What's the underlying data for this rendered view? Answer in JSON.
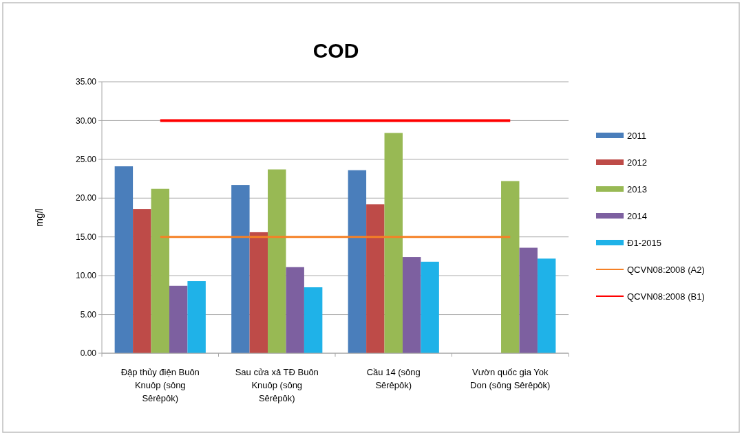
{
  "chart_data": {
    "type": "bar",
    "title": "COD",
    "ylabel": "mg/l",
    "categories": [
      "Đập thủy điện Buôn Knuôp (sông Sêrêpôk)",
      "Sau cửa xả TĐ Buôn Knuôp (sông Sêrêpôk)",
      "Cầu 14 (sông Sêrêpôk)",
      "Vườn quốc gia Yok Don (sông Sêrêpôk)"
    ],
    "series": [
      {
        "name": "2011",
        "color": "#4a7ebb",
        "values": [
          24.1,
          21.7,
          23.6,
          null
        ]
      },
      {
        "name": "2012",
        "color": "#be4b48",
        "values": [
          18.6,
          15.6,
          19.2,
          null
        ]
      },
      {
        "name": "2013",
        "color": "#98b954",
        "values": [
          21.2,
          23.7,
          28.4,
          22.2
        ]
      },
      {
        "name": "2014",
        "color": "#7d60a0",
        "values": [
          8.7,
          11.1,
          12.4,
          13.6
        ]
      },
      {
        "name": "Đ1-2015",
        "color": "#1fb2e8",
        "values": [
          9.3,
          8.5,
          11.8,
          12.2
        ]
      },
      {
        "name": "QCVN08:2008 (A2)",
        "type": "line",
        "color": "#f58025",
        "values": [
          15,
          15,
          15,
          15
        ]
      },
      {
        "name": "QCVN08:2008 (B1)",
        "type": "line",
        "color": "#ff0000",
        "values": [
          30,
          30,
          30,
          30
        ]
      }
    ],
    "ylim": [
      0,
      35
    ],
    "yticks": [
      {
        "value": 0,
        "label": "0.00"
      },
      {
        "value": 5,
        "label": "5.00"
      },
      {
        "value": 10,
        "label": "10.00"
      },
      {
        "value": 15,
        "label": "15.00"
      },
      {
        "value": 20,
        "label": "20.00"
      },
      {
        "value": 25,
        "label": "25.00"
      },
      {
        "value": 30,
        "label": "30.00"
      },
      {
        "value": 35,
        "label": "35.00"
      }
    ],
    "grid": "y",
    "legend": "right"
  }
}
